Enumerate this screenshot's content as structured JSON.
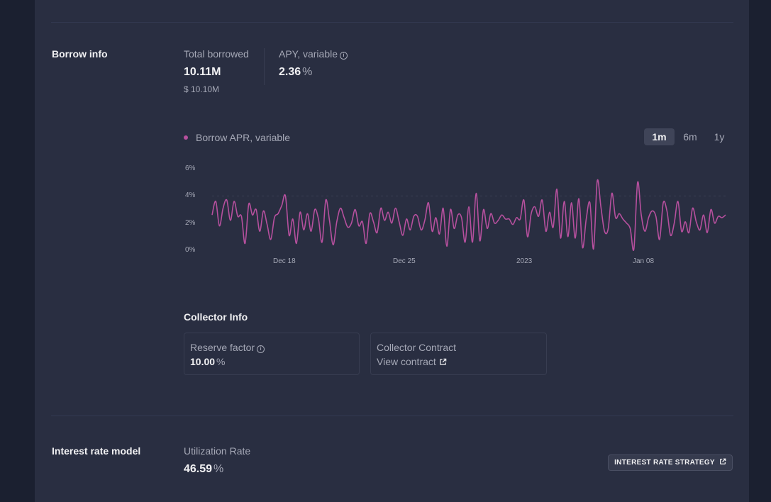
{
  "borrow_info": {
    "section_title": "Borrow info",
    "total_borrowed_label": "Total borrowed",
    "total_borrowed_value": "10.11M",
    "total_borrowed_usd": "$ 10.10M",
    "apy_label": "APY, variable",
    "apy_value": "2.36",
    "apy_unit": "%"
  },
  "chart_controls": {
    "legend_label": "Borrow APR, variable",
    "ranges": [
      "1m",
      "6m",
      "1y"
    ],
    "selected_range": "1m"
  },
  "chart_data": {
    "type": "line",
    "x_tick_labels": [
      "Dec 18",
      "Dec 25",
      "2023",
      "Jan 08"
    ],
    "y_tick_labels": [
      "6%",
      "4%",
      "2%",
      "0%"
    ],
    "ylim": [
      0,
      6
    ],
    "grid": true,
    "series": [
      {
        "color": "#b6509e",
        "values": [
          2.6,
          3.6,
          1.8,
          3.1,
          3.7,
          2.2,
          3.6,
          2.5,
          2.5,
          0.5,
          3.4,
          2.6,
          3.0,
          1.4,
          2.9,
          1.9,
          0.8,
          2.4,
          2.7,
          3.3,
          4.0,
          1.1,
          2.3,
          0.5,
          2.8,
          1.5,
          2.7,
          1.4,
          3.0,
          2.3,
          0.6,
          3.7,
          2.2,
          0.4,
          2.1,
          3.1,
          2.4,
          1.7,
          2.0,
          3.0,
          1.8,
          2.1,
          0.5,
          2.7,
          2.1,
          1.3,
          3.1,
          2.2,
          2.8,
          2.0,
          3.1,
          2.1,
          1.1,
          2.3,
          1.5,
          2.5,
          2.5,
          1.5,
          2.2,
          3.5,
          1.4,
          2.4,
          1.2,
          3.1,
          0.3,
          3.0,
          1.6,
          2.6,
          2.4,
          0.6,
          3.2,
          0.6,
          4.2,
          0.7,
          3.0,
          1.6,
          2.7,
          2.0,
          2.2,
          2.6,
          2.3,
          2.3,
          1.9,
          2.4,
          2.3,
          3.7,
          1.0,
          2.7,
          3.2,
          2.5,
          3.7,
          1.4,
          2.8,
          1.7,
          4.5,
          0.9,
          3.6,
          1.0,
          3.5,
          0.9,
          3.8,
          0.2,
          2.3,
          3.5,
          0.1,
          5.1,
          3.2,
          1.4,
          1.6,
          4.2,
          2.4,
          2.7,
          2.3,
          2.0,
          1.6,
          0.1,
          5.0,
          2.6,
          1.4,
          2.4,
          2.9,
          2.5,
          0.8,
          3.5,
          2.9,
          1.1,
          2.0,
          3.6,
          1.4,
          2.1,
          1.3,
          3.1,
          2.1,
          1.5,
          2.6,
          1.3,
          3.0,
          2.0,
          2.5,
          2.4,
          2.6
        ]
      }
    ]
  },
  "collector_info": {
    "section_title": "Collector Info",
    "reserve_factor_label": "Reserve factor",
    "reserve_factor_value": "10.00",
    "reserve_factor_unit": "%",
    "collector_contract_label": "Collector Contract",
    "view_contract_label": "View contract"
  },
  "interest_rate_model": {
    "section_title": "Interest rate model",
    "utilization_label": "Utilization Rate",
    "utilization_value": "46.59",
    "utilization_unit": "%",
    "strategy_button": "INTEREST RATE STRATEGY"
  },
  "icons": {
    "info": "info-circle-icon",
    "external": "external-link-icon"
  }
}
